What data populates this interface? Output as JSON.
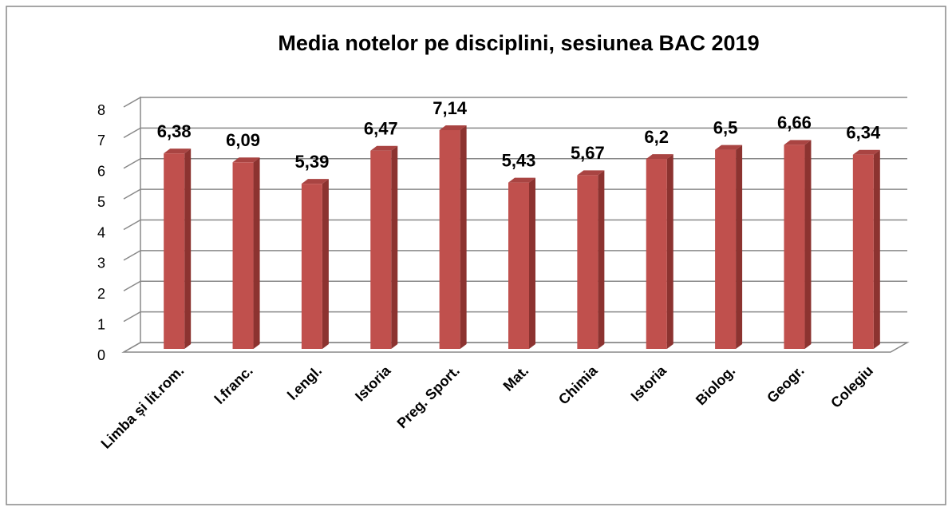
{
  "chart_data": {
    "type": "bar3d",
    "title": "Media notelor pe disciplini, sesiunea BAC 2019",
    "categories": [
      "Limba și lit.rom.",
      "l.franc.",
      "l.engl.",
      "Istoria",
      "Preg. Sport.",
      "Mat.",
      "Chimia",
      "Istoria",
      "Biolog.",
      "Geogr.",
      "Colegiu"
    ],
    "values": [
      6.38,
      6.09,
      5.39,
      6.47,
      7.14,
      5.43,
      5.67,
      6.2,
      6.5,
      6.66,
      6.34
    ],
    "value_labels": [
      "6,38",
      "6,09",
      "5,39",
      "6,47",
      "7,14",
      "5,43",
      "5,67",
      "6,2",
      "6,5",
      "6,66",
      "6,34"
    ],
    "color": "#c0504d",
    "ylim": [
      0,
      8
    ],
    "yticks": [
      0,
      1,
      2,
      3,
      4,
      5,
      6,
      7,
      8
    ],
    "grid": true
  }
}
